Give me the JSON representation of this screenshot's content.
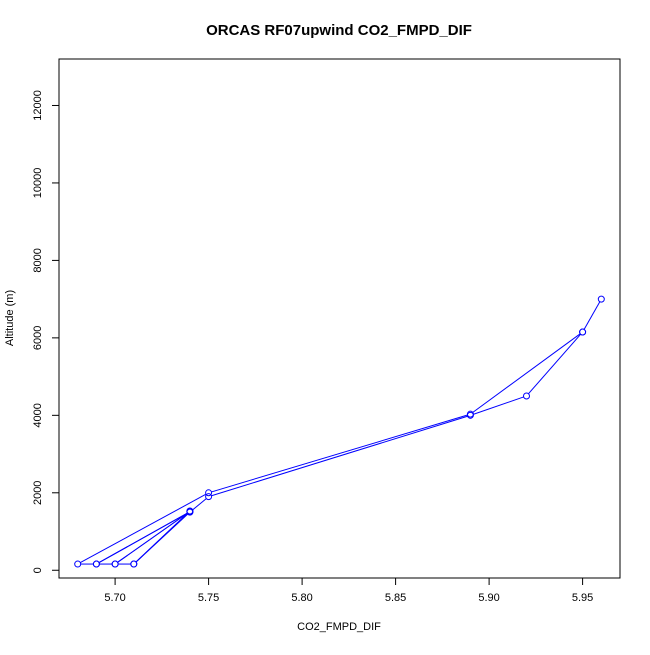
{
  "chart_data": {
    "type": "line",
    "title": "ORCAS RF07upwind CO2_FMPD_DIF",
    "xlabel": "CO2_FMPD_DIF",
    "ylabel": "Altitude (m)",
    "xlim": [
      5.67,
      5.97
    ],
    "ylim": [
      -200,
      13200
    ],
    "x_ticks": [
      "5.70",
      "5.75",
      "5.80",
      "5.85",
      "5.90",
      "5.95"
    ],
    "y_ticks": [
      "0",
      "2000",
      "4000",
      "6000",
      "8000",
      "10000",
      "12000"
    ],
    "grid": false,
    "markers": "open-circle",
    "color": "#0000ff",
    "series": [
      {
        "x": [
          5.96,
          5.95,
          5.89,
          5.75,
          5.68,
          5.69,
          5.74,
          5.69,
          5.7,
          5.74,
          5.7,
          5.71,
          5.74,
          5.71,
          5.74,
          5.75,
          5.89,
          5.92,
          5.95
        ],
        "y": [
          7000,
          6150,
          4030,
          2000,
          160,
          160,
          1510,
          160,
          160,
          1520,
          160,
          160,
          1530,
          160,
          1500,
          1900,
          4000,
          4500,
          6150
        ]
      }
    ]
  }
}
